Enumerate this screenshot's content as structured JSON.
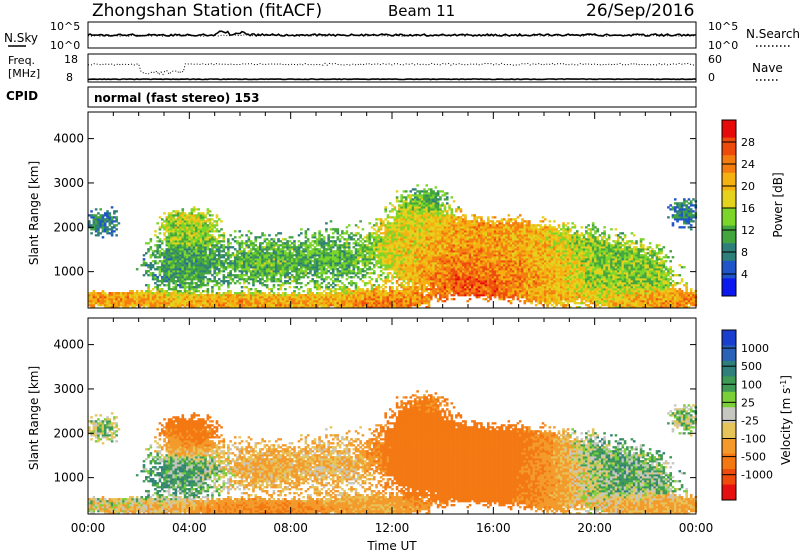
{
  "header": {
    "title": "Zhongshan Station (fitACF)",
    "beam": "Beam 11",
    "date": "26/Sep/2016"
  },
  "sky_panel": {
    "left_label": "N.Sky",
    "right_label": "N.Search",
    "left_ticks": [
      "10^5",
      "10^0"
    ],
    "right_ticks": [
      "10^5",
      "10^0"
    ]
  },
  "freq_panel": {
    "left_label_1": "Freq.",
    "left_label_2": "[MHz]",
    "right_label": "Nave",
    "left_ticks": [
      "18",
      "8"
    ],
    "right_ticks": [
      "60",
      "0"
    ]
  },
  "cpid": {
    "label": "CPID",
    "mode": "normal (fast stereo) 153"
  },
  "chart_data": [
    {
      "type": "heatmap",
      "name": "Power",
      "ylabel": "Slant Range [km]",
      "ylim": [
        180,
        4600
      ],
      "yticks": [
        "1000",
        "2000",
        "3000",
        "4000"
      ],
      "xlim": [
        0,
        24
      ],
      "colorbar_label": "Power [dB]",
      "colorbar_ticks": [
        "4",
        "8",
        "12",
        "16",
        "20",
        "24",
        "28"
      ],
      "colorbar_colors": [
        "#0b18f0",
        "#1f55c8",
        "#2e7f79",
        "#43a53e",
        "#7bd629",
        "#e4d21d",
        "#f4b10f",
        "#f47d10",
        "#ee4a0c",
        "#e60a0a"
      ]
    },
    {
      "type": "heatmap",
      "name": "Velocity",
      "ylabel": "Slant Range [km]",
      "ylim": [
        180,
        4600
      ],
      "yticks": [
        "1000",
        "2000",
        "3000",
        "4000"
      ],
      "xlim": [
        0,
        24
      ],
      "xlabel": "Time UT",
      "xticks": [
        "00:00",
        "04:00",
        "08:00",
        "12:00",
        "16:00",
        "20:00",
        "00:00"
      ],
      "colorbar_label": "Velocity [m s^-1]",
      "colorbar_ticks": [
        "1000",
        "500",
        "100",
        "25",
        "-25",
        "-100",
        "-500",
        "-1000"
      ],
      "colorbar_colors": [
        "#1a3fcf",
        "#2a62b8",
        "#2f7f7a",
        "#3f9a55",
        "#7bd03a",
        "#c7c7c2",
        "#e7c45a",
        "#f39a2b",
        "#f47812",
        "#ee4b0d",
        "#e61010"
      ]
    }
  ]
}
